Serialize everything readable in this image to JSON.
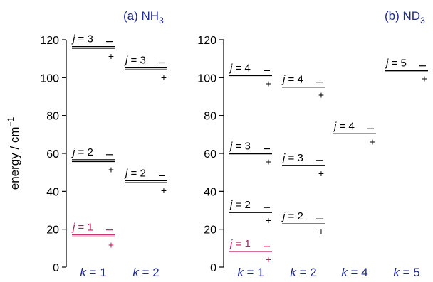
{
  "ylabel": "energy / cm",
  "ylabel_exp": "−1",
  "colors": {
    "text": "#000000",
    "title": "#1f2a8c",
    "klabel": "#1f2a8c",
    "highlight": "#c0185b"
  },
  "chart_data": [
    {
      "type": "energy-level-diagram",
      "title": "(a) NH",
      "title_sub": "3",
      "ylim": [
        0,
        120
      ],
      "ticks": [
        0,
        20,
        40,
        60,
        80,
        100,
        120
      ],
      "columns": [
        {
          "label": "k = 1",
          "levels": [
            {
              "j": 1,
              "label": "j = 1",
              "upper": 17.0,
              "lower": 16.0,
              "highlight": true
            },
            {
              "j": 2,
              "label": "j = 2",
              "upper": 56.7,
              "lower": 55.7,
              "highlight": false
            },
            {
              "j": 3,
              "label": "j = 3",
              "upper": 116.4,
              "lower": 115.5,
              "highlight": false
            }
          ]
        },
        {
          "label": "k = 2",
          "levels": [
            {
              "j": 2,
              "label": "j = 2",
              "upper": 45.6,
              "lower": 44.6,
              "highlight": false
            },
            {
              "j": 3,
              "label": "j = 3",
              "upper": 105.2,
              "lower": 104.2,
              "highlight": false
            }
          ]
        }
      ]
    },
    {
      "type": "energy-level-diagram",
      "title": "(b) ND",
      "title_sub": "3",
      "ylim": [
        0,
        120
      ],
      "ticks": [
        0,
        20,
        40,
        60,
        80,
        100,
        120
      ],
      "columns": [
        {
          "label": "k = 1",
          "levels": [
            {
              "j": 1,
              "label": "j = 1",
              "upper": 8.3,
              "lower": 8.3,
              "highlight": true
            },
            {
              "j": 2,
              "label": "j = 2",
              "upper": 28.8,
              "lower": 28.8,
              "highlight": false
            },
            {
              "j": 3,
              "label": "j = 3",
              "upper": 59.8,
              "lower": 59.8,
              "highlight": false
            },
            {
              "j": 4,
              "label": "j = 4",
              "upper": 101.1,
              "lower": 101.1,
              "highlight": false
            }
          ]
        },
        {
          "label": "k = 2",
          "levels": [
            {
              "j": 2,
              "label": "j = 2",
              "upper": 22.8,
              "lower": 22.8,
              "highlight": false
            },
            {
              "j": 3,
              "label": "j = 3",
              "upper": 53.7,
              "lower": 53.7,
              "highlight": false
            },
            {
              "j": 4,
              "label": "j = 4",
              "upper": 95.0,
              "lower": 95.0,
              "highlight": false
            }
          ]
        },
        {
          "label": "k = 4",
          "levels": [
            {
              "j": 4,
              "label": "j = 4",
              "upper": 70.4,
              "lower": 70.4,
              "highlight": false
            }
          ]
        },
        {
          "label": "k = 5",
          "levels": [
            {
              "j": 5,
              "label": "j = 5",
              "upper": 103.6,
              "lower": 103.6,
              "highlight": false
            }
          ]
        }
      ]
    }
  ]
}
